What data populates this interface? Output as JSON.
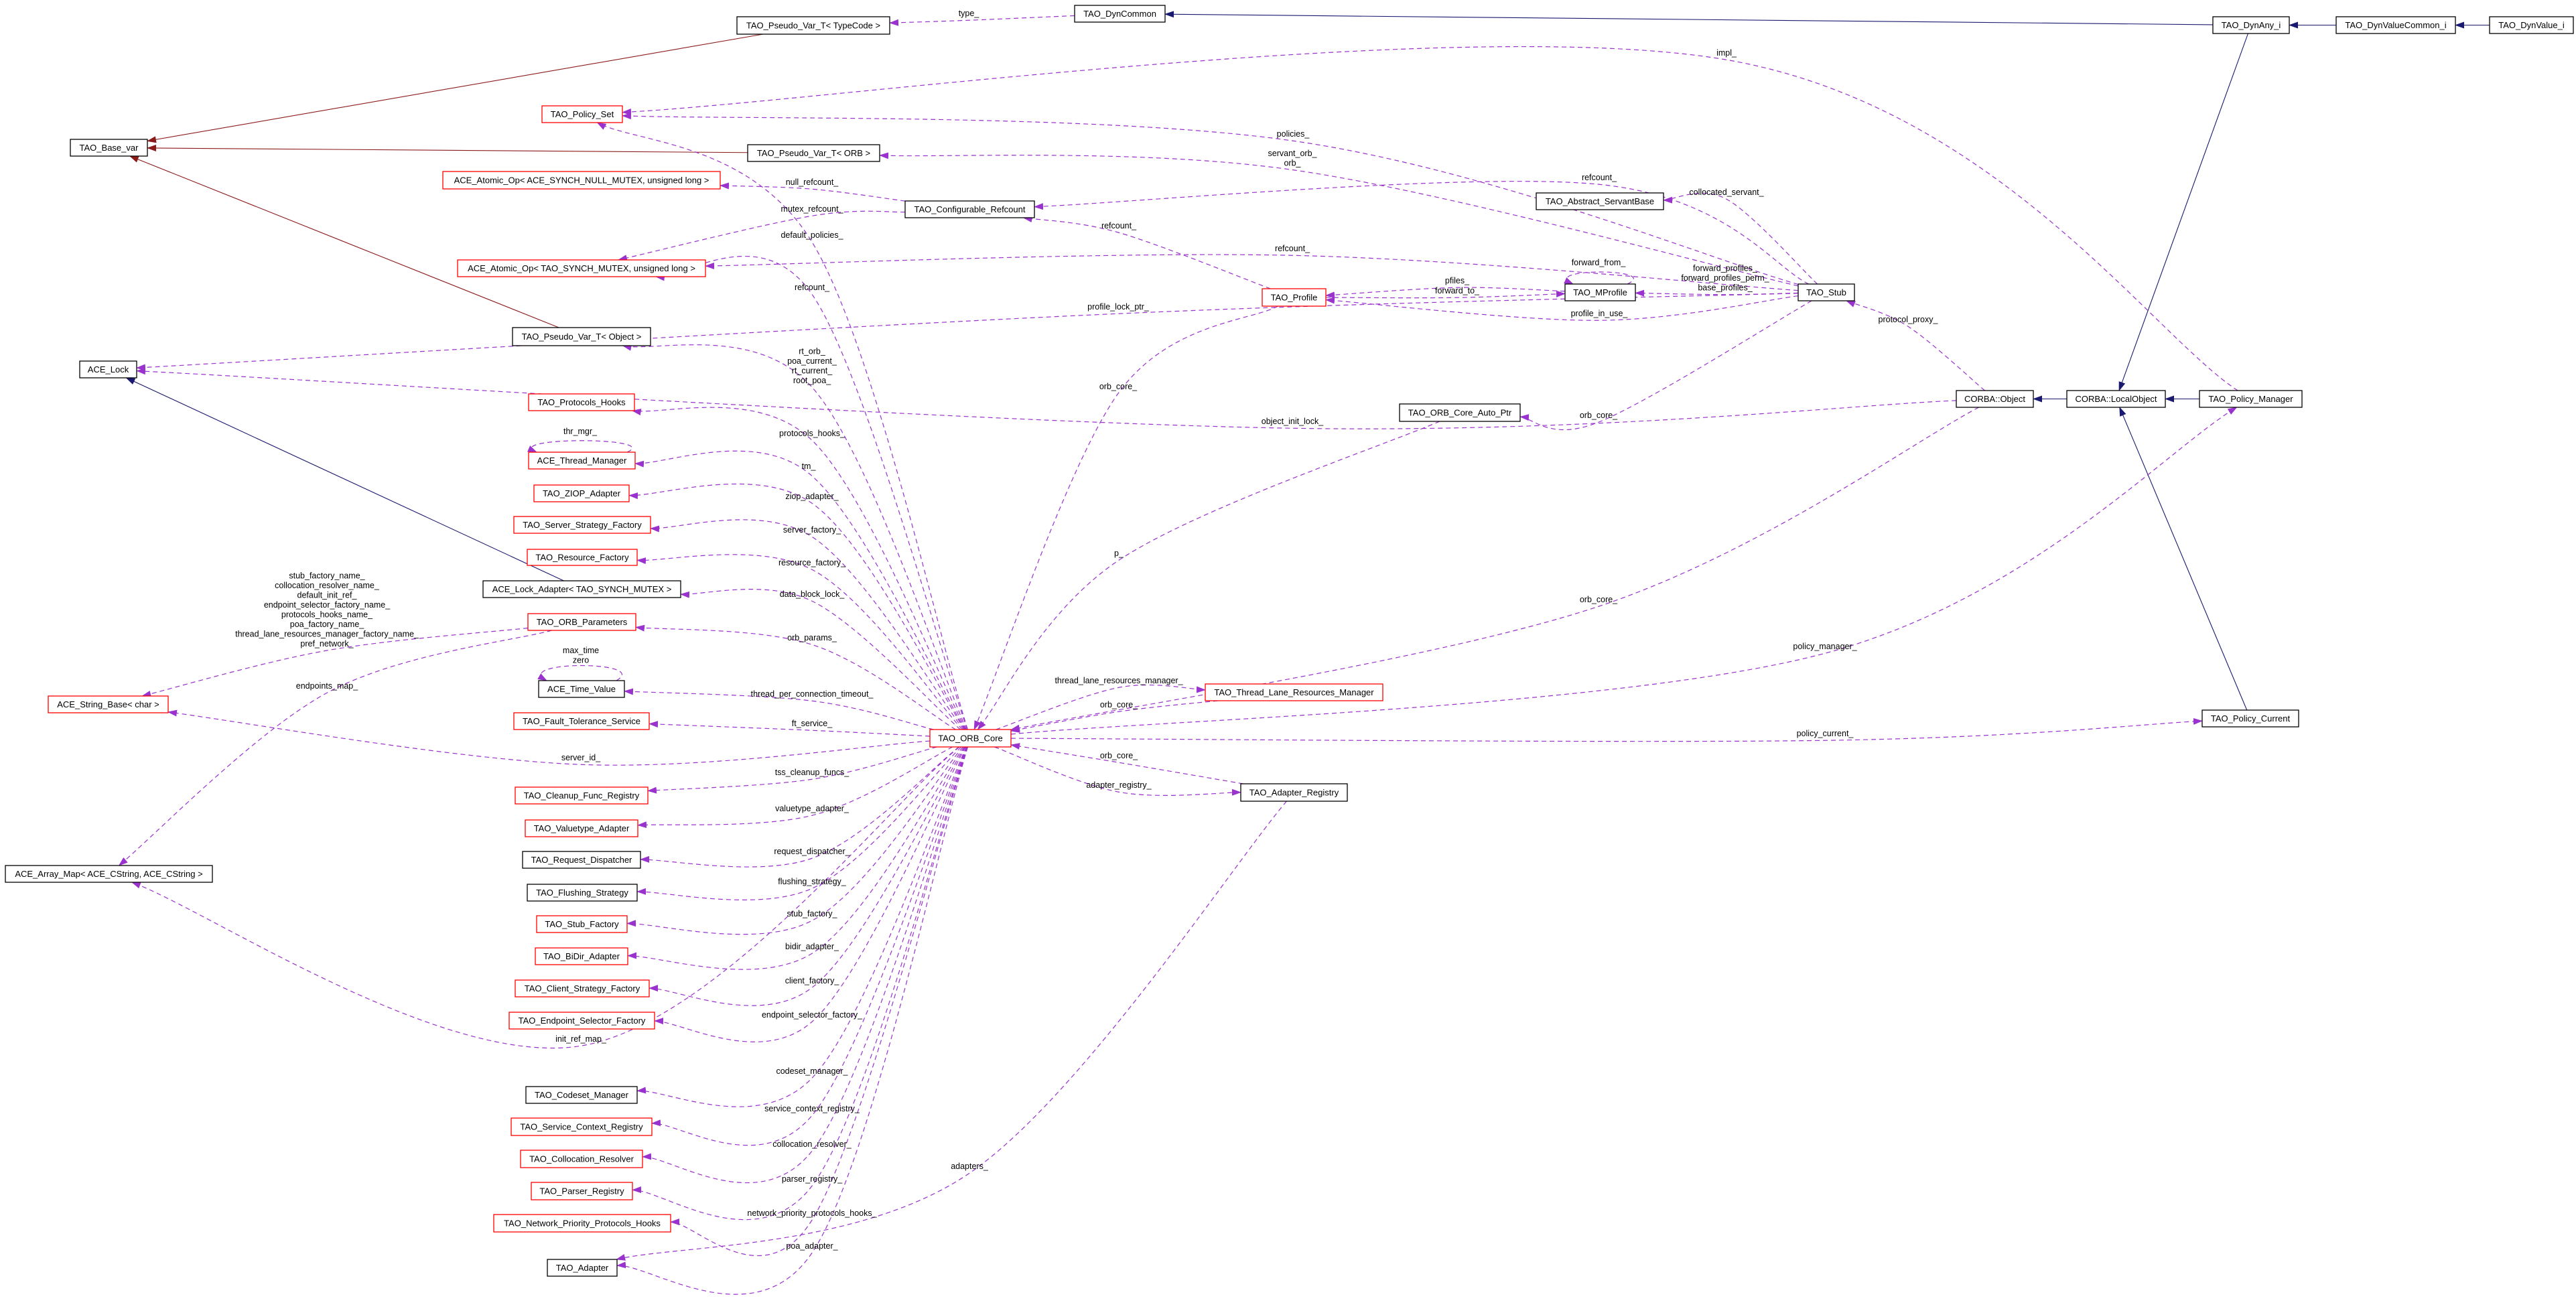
{
  "colors": {
    "inheritance": "#191970",
    "template": "#8b1a1a",
    "usage": "#9a32cd",
    "truncated_border": "#ff0000",
    "normal_border": "#000000",
    "focus_fill": "#bfbfbf"
  },
  "nodes": [
    {
      "id": "typecode",
      "label": "TAO_Pseudo_Var_T< TypeCode >",
      "border": "black"
    },
    {
      "id": "dyncommon",
      "label": "TAO_DynCommon",
      "border": "black"
    },
    {
      "id": "dynany",
      "label": "TAO_DynAny_i",
      "border": "black"
    },
    {
      "id": "dynvaluecommon",
      "label": "TAO_DynValueCommon_i",
      "border": "black"
    },
    {
      "id": "dynvalue",
      "label": "TAO_DynValue_i",
      "border": "focus"
    },
    {
      "id": "policy_set",
      "label": "TAO_Policy_Set",
      "border": "red"
    },
    {
      "id": "base_var",
      "label": "TAO_Base_var",
      "border": "black"
    },
    {
      "id": "pseudo_orb",
      "label": "TAO_Pseudo_Var_T< ORB >",
      "border": "black"
    },
    {
      "id": "atomic_null",
      "label": "ACE_Atomic_Op< ACE_SYNCH_NULL_MUTEX, unsigned long >",
      "border": "red"
    },
    {
      "id": "conf_refcount",
      "label": "TAO_Configurable_Refcount",
      "border": "black"
    },
    {
      "id": "abstract_servant",
      "label": "TAO_Abstract_ServantBase",
      "border": "black"
    },
    {
      "id": "atomic_mutex",
      "label": "ACE_Atomic_Op< TAO_SYNCH_MUTEX, unsigned long >",
      "border": "red"
    },
    {
      "id": "profile",
      "label": "TAO_Profile",
      "border": "red"
    },
    {
      "id": "mprofile",
      "label": "TAO_MProfile",
      "border": "black"
    },
    {
      "id": "stub",
      "label": "TAO_Stub",
      "border": "black"
    },
    {
      "id": "pseudo_object",
      "label": "TAO_Pseudo_Var_T< Object >",
      "border": "black"
    },
    {
      "id": "ace_lock",
      "label": "ACE_Lock",
      "border": "black"
    },
    {
      "id": "orb_core_auto_ptr",
      "label": "TAO_ORB_Core_Auto_Ptr",
      "border": "black"
    },
    {
      "id": "corba_object",
      "label": "CORBA::Object",
      "border": "black"
    },
    {
      "id": "local_object",
      "label": "CORBA::LocalObject",
      "border": "black"
    },
    {
      "id": "policy_manager",
      "label": "TAO_Policy_Manager",
      "border": "black"
    },
    {
      "id": "protocols_hooks",
      "label": "TAO_Protocols_Hooks",
      "border": "red"
    },
    {
      "id": "thread_manager",
      "label": "ACE_Thread_Manager",
      "border": "red"
    },
    {
      "id": "ziop",
      "label": "TAO_ZIOP_Adapter",
      "border": "red"
    },
    {
      "id": "server_strategy",
      "label": "TAO_Server_Strategy_Factory",
      "border": "red"
    },
    {
      "id": "resource_factory",
      "label": "TAO_Resource_Factory",
      "border": "red"
    },
    {
      "id": "lock_adapter",
      "label": "ACE_Lock_Adapter< TAO_SYNCH_MUTEX >",
      "border": "black"
    },
    {
      "id": "orb_parameters",
      "label": "TAO_ORB_Parameters",
      "border": "red"
    },
    {
      "id": "time_value",
      "label": "ACE_Time_Value",
      "border": "black"
    },
    {
      "id": "tlrm",
      "label": "TAO_Thread_Lane_Resources_Manager",
      "border": "red"
    },
    {
      "id": "string_base",
      "label": "ACE_String_Base< char >",
      "border": "red"
    },
    {
      "id": "fault_tolerance",
      "label": "TAO_Fault_Tolerance_Service",
      "border": "red"
    },
    {
      "id": "policy_current",
      "label": "TAO_Policy_Current",
      "border": "black"
    },
    {
      "id": "orb_core",
      "label": "TAO_ORB_Core",
      "border": "red"
    },
    {
      "id": "adapter_registry",
      "label": "TAO_Adapter_Registry",
      "border": "black"
    },
    {
      "id": "cleanup",
      "label": "TAO_Cleanup_Func_Registry",
      "border": "red"
    },
    {
      "id": "valuetype",
      "label": "TAO_Valuetype_Adapter",
      "border": "red"
    },
    {
      "id": "request_dispatcher",
      "label": "TAO_Request_Dispatcher",
      "border": "black"
    },
    {
      "id": "array_map",
      "label": "ACE_Array_Map< ACE_CString, ACE_CString >",
      "border": "black"
    },
    {
      "id": "flushing",
      "label": "TAO_Flushing_Strategy",
      "border": "black"
    },
    {
      "id": "stub_factory",
      "label": "TAO_Stub_Factory",
      "border": "red"
    },
    {
      "id": "bidir",
      "label": "TAO_BiDir_Adapter",
      "border": "red"
    },
    {
      "id": "client_strategy",
      "label": "TAO_Client_Strategy_Factory",
      "border": "red"
    },
    {
      "id": "endpoint_selector",
      "label": "TAO_Endpoint_Selector_Factory",
      "border": "red"
    },
    {
      "id": "codeset",
      "label": "TAO_Codeset_Manager",
      "border": "black"
    },
    {
      "id": "service_context",
      "label": "TAO_Service_Context_Registry",
      "border": "red"
    },
    {
      "id": "collocation",
      "label": "TAO_Collocation_Resolver",
      "border": "red"
    },
    {
      "id": "parser",
      "label": "TAO_Parser_Registry",
      "border": "red"
    },
    {
      "id": "network_priority",
      "label": "TAO_Network_Priority_Protocols_Hooks",
      "border": "red"
    },
    {
      "id": "adapter",
      "label": "TAO_Adapter",
      "border": "black"
    }
  ],
  "edges": [
    {
      "from": "dynany",
      "to": "dyncommon",
      "type": "inheritance",
      "labels": []
    },
    {
      "from": "dynvaluecommon",
      "to": "dynany",
      "type": "inheritance",
      "labels": []
    },
    {
      "from": "dynvalue",
      "to": "dynvaluecommon",
      "type": "inheritance",
      "labels": []
    },
    {
      "from": "dynany",
      "to": "local_object",
      "type": "inheritance",
      "labels": []
    },
    {
      "from": "local_object",
      "to": "corba_object",
      "type": "inheritance",
      "labels": []
    },
    {
      "from": "policy_manager",
      "to": "local_object",
      "type": "inheritance",
      "labels": []
    },
    {
      "from": "policy_current",
      "to": "local_object",
      "type": "inheritance",
      "labels": []
    },
    {
      "from": "lock_adapter",
      "to": "ace_lock",
      "type": "inheritance",
      "labels": []
    },
    {
      "from": "typecode",
      "to": "base_var",
      "type": "template",
      "labels": []
    },
    {
      "from": "pseudo_orb",
      "to": "base_var",
      "type": "template",
      "labels": []
    },
    {
      "from": "pseudo_object",
      "to": "base_var",
      "type": "template",
      "labels": []
    },
    {
      "from": "dyncommon",
      "to": "typecode",
      "type": "usage",
      "labels": [
        "type_"
      ]
    },
    {
      "from": "policy_manager",
      "to": "policy_set",
      "type": "usage",
      "labels": [
        "impl_"
      ]
    },
    {
      "from": "stub",
      "to": "policy_set",
      "type": "usage",
      "labels": [
        "policies_"
      ]
    },
    {
      "from": "orb_core",
      "to": "policy_set",
      "type": "usage",
      "labels": [
        "default_policies_"
      ]
    },
    {
      "from": "stub",
      "to": "pseudo_orb",
      "type": "usage",
      "labels": [
        "servant_orb_",
        "orb_"
      ]
    },
    {
      "from": "conf_refcount",
      "to": "atomic_null",
      "type": "usage",
      "labels": [
        "null_refcount_"
      ]
    },
    {
      "from": "conf_refcount",
      "to": "atomic_mutex",
      "type": "usage",
      "labels": [
        "mutex_refcount_"
      ]
    },
    {
      "from": "stub",
      "to": "conf_refcount",
      "type": "usage",
      "labels": [
        "refcount_"
      ]
    },
    {
      "from": "profile",
      "to": "conf_refcount",
      "type": "usage",
      "labels": [
        "refcount_"
      ]
    },
    {
      "from": "stub",
      "to": "atomic_mutex",
      "type": "usage",
      "labels": [
        "refcount_"
      ]
    },
    {
      "from": "orb_core",
      "to": "atomic_mutex",
      "type": "usage",
      "labels": [
        "refcount_"
      ]
    },
    {
      "from": "stub",
      "to": "abstract_servant",
      "type": "usage",
      "labels": [
        "collocated_servant_"
      ]
    },
    {
      "from": "stub",
      "to": "ace_lock",
      "type": "usage",
      "labels": [
        "profile_lock_ptr_"
      ]
    },
    {
      "from": "corba_object",
      "to": "ace_lock",
      "type": "usage",
      "labels": [
        "object_init_lock_"
      ]
    },
    {
      "from": "orb_core",
      "to": "pseudo_object",
      "type": "usage",
      "labels": [
        "rt_orb_",
        "poa_current_",
        "rt_current_",
        "root_poa_"
      ]
    },
    {
      "from": "mprofile",
      "to": "profile",
      "type": "usage",
      "labels": [
        "pfiles_"
      ]
    },
    {
      "from": "profile",
      "to": "mprofile",
      "type": "usage",
      "labels": [
        "forward_to_"
      ]
    },
    {
      "from": "mprofile",
      "to": "mprofile",
      "type": "usage",
      "labels": [
        "forward_from_"
      ]
    },
    {
      "from": "stub",
      "to": "mprofile",
      "type": "usage",
      "labels": [
        "forward_profiles_",
        "forward_profiles_perm_",
        "base_profiles_"
      ]
    },
    {
      "from": "stub",
      "to": "profile",
      "type": "usage",
      "labels": [
        "profile_in_use_"
      ]
    },
    {
      "from": "profile",
      "to": "orb_core",
      "type": "usage",
      "labels": [
        "orb_core_"
      ]
    },
    {
      "from": "stub",
      "to": "orb_core_auto_ptr",
      "type": "usage",
      "labels": [
        "orb_core_"
      ]
    },
    {
      "from": "orb_core_auto_ptr",
      "to": "orb_core",
      "type": "usage",
      "labels": [
        "p_"
      ]
    },
    {
      "from": "corba_object",
      "to": "stub",
      "type": "usage",
      "labels": [
        "protocol_proxy_"
      ]
    },
    {
      "from": "corba_object",
      "to": "orb_core",
      "type": "usage",
      "labels": [
        "orb_core_"
      ]
    },
    {
      "from": "orb_core",
      "to": "policy_manager",
      "type": "usage",
      "labels": [
        "policy_manager_"
      ]
    },
    {
      "from": "orb_core",
      "to": "policy_current",
      "type": "usage",
      "labels": [
        "policy_current_"
      ]
    },
    {
      "from": "orb_core",
      "to": "tlrm",
      "type": "usage",
      "labels": [
        "thread_lane_resources_manager_"
      ]
    },
    {
      "from": "tlrm",
      "to": "orb_core",
      "type": "usage",
      "labels": [
        "orb_core_"
      ]
    },
    {
      "from": "adapter_registry",
      "to": "orb_core",
      "type": "usage",
      "labels": [
        "orb_core_"
      ]
    },
    {
      "from": "orb_core",
      "to": "adapter_registry",
      "type": "usage",
      "labels": [
        "adapter_registry_"
      ]
    },
    {
      "from": "adapter_registry",
      "to": "adapter",
      "type": "usage",
      "labels": [
        "adapters_"
      ]
    },
    {
      "from": "orb_core",
      "to": "protocols_hooks",
      "type": "usage",
      "labels": [
        "protocols_hooks_"
      ]
    },
    {
      "from": "thread_manager",
      "to": "thread_manager",
      "type": "usage",
      "labels": [
        "thr_mgr_"
      ]
    },
    {
      "from": "orb_core",
      "to": "thread_manager",
      "type": "usage",
      "labels": [
        "tm_"
      ]
    },
    {
      "from": "orb_core",
      "to": "ziop",
      "type": "usage",
      "labels": [
        "ziop_adapter_"
      ]
    },
    {
      "from": "orb_core",
      "to": "server_strategy",
      "type": "usage",
      "labels": [
        "server_factory_"
      ]
    },
    {
      "from": "orb_core",
      "to": "resource_factory",
      "type": "usage",
      "labels": [
        "resource_factory_"
      ]
    },
    {
      "from": "orb_core",
      "to": "lock_adapter",
      "type": "usage",
      "labels": [
        "data_block_lock_"
      ]
    },
    {
      "from": "orb_core",
      "to": "orb_parameters",
      "type": "usage",
      "labels": [
        "orb_params_"
      ]
    },
    {
      "from": "orb_parameters",
      "to": "string_base",
      "type": "usage",
      "labels": [
        "stub_factory_name_",
        "collocation_resolver_name_",
        "default_init_ref_",
        "endpoint_selector_factory_name_",
        "protocols_hooks_name_",
        "poa_factory_name_",
        "thread_lane_resources_manager_factory_name_",
        "pref_network_"
      ]
    },
    {
      "from": "orb_parameters",
      "to": "array_map",
      "type": "usage",
      "labels": [
        "endpoints_map_"
      ]
    },
    {
      "from": "time_value",
      "to": "time_value",
      "type": "usage",
      "labels": [
        "max_time",
        "zero"
      ]
    },
    {
      "from": "orb_core",
      "to": "time_value",
      "type": "usage",
      "labels": [
        "thread_per_connection_timeout_"
      ]
    },
    {
      "from": "orb_core",
      "to": "fault_tolerance",
      "type": "usage",
      "labels": [
        "ft_service_"
      ]
    },
    {
      "from": "orb_core",
      "to": "string_base",
      "type": "usage",
      "labels": [
        "server_id_"
      ]
    },
    {
      "from": "orb_core",
      "to": "cleanup",
      "type": "usage",
      "labels": [
        "tss_cleanup_funcs_"
      ]
    },
    {
      "from": "orb_core",
      "to": "valuetype",
      "type": "usage",
      "labels": [
        "valuetype_adapter_"
      ]
    },
    {
      "from": "orb_core",
      "to": "request_dispatcher",
      "type": "usage",
      "labels": [
        "request_dispatcher_"
      ]
    },
    {
      "from": "orb_core",
      "to": "flushing",
      "type": "usage",
      "labels": [
        "flushing_strategy_"
      ]
    },
    {
      "from": "orb_core",
      "to": "stub_factory",
      "type": "usage",
      "labels": [
        "stub_factory_"
      ]
    },
    {
      "from": "orb_core",
      "to": "bidir",
      "type": "usage",
      "labels": [
        "bidir_adapter_"
      ]
    },
    {
      "from": "orb_core",
      "to": "client_strategy",
      "type": "usage",
      "labels": [
        "client_factory_"
      ]
    },
    {
      "from": "orb_core",
      "to": "endpoint_selector",
      "type": "usage",
      "labels": [
        "endpoint_selector_factory_"
      ]
    },
    {
      "from": "orb_core",
      "to": "array_map",
      "type": "usage",
      "labels": [
        "init_ref_map_"
      ]
    },
    {
      "from": "orb_core",
      "to": "codeset",
      "type": "usage",
      "labels": [
        "codeset_manager_"
      ]
    },
    {
      "from": "orb_core",
      "to": "service_context",
      "type": "usage",
      "labels": [
        "service_context_registry_"
      ]
    },
    {
      "from": "orb_core",
      "to": "collocation",
      "type": "usage",
      "labels": [
        "collocation_resolver_"
      ]
    },
    {
      "from": "orb_core",
      "to": "parser",
      "type": "usage",
      "labels": [
        "parser_registry_"
      ]
    },
    {
      "from": "orb_core",
      "to": "network_priority",
      "type": "usage",
      "labels": [
        "network_priority_protocols_hooks_"
      ]
    },
    {
      "from": "orb_core",
      "to": "adapter",
      "type": "usage",
      "labels": [
        "poa_adapter_"
      ]
    }
  ]
}
